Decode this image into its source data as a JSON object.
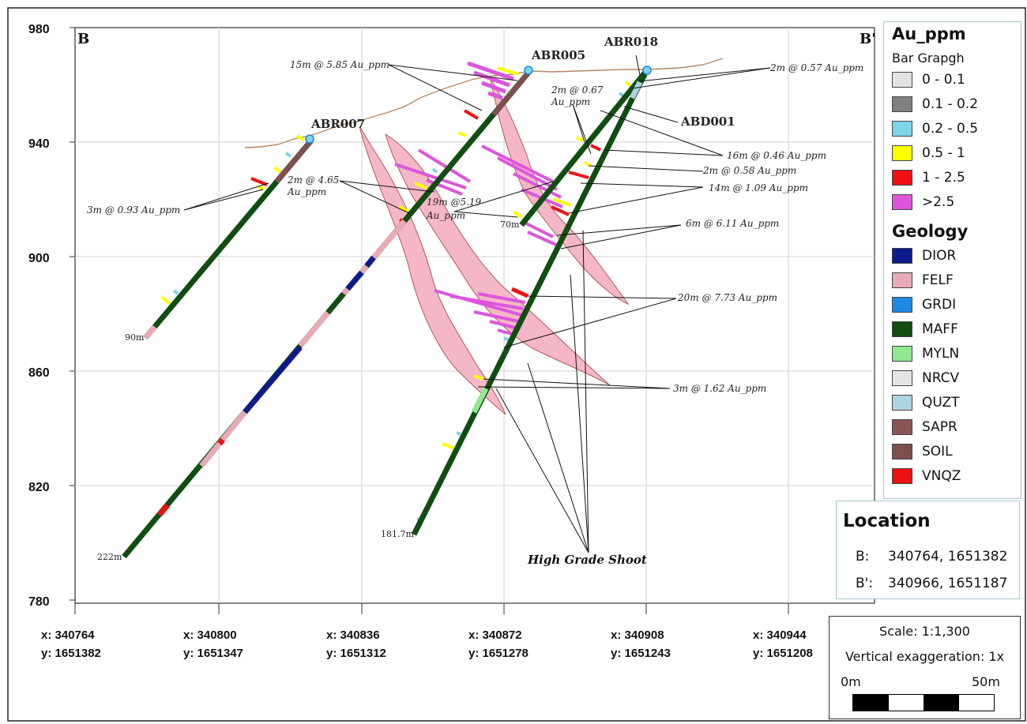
{
  "section": {
    "left_label": "B",
    "right_label": "B'",
    "y_ticks": [
      {
        "value": 980,
        "label": "980"
      },
      {
        "value": 940,
        "label": "940"
      },
      {
        "value": 900,
        "label": "900"
      },
      {
        "value": 860,
        "label": "860"
      },
      {
        "value": 820,
        "label": "820"
      },
      {
        "value": 780,
        "label": "780"
      }
    ],
    "x_ticks": [
      {
        "x": "x: 340764",
        "y": "y: 1651382"
      },
      {
        "x": "x: 340800",
        "y": "y: 1651347"
      },
      {
        "x": "x: 340836",
        "y": "y: 1651312"
      },
      {
        "x": "x: 340872",
        "y": "y: 1651278"
      },
      {
        "x": "x: 340908",
        "y": "y: 1651243"
      },
      {
        "x": "x: 340944",
        "y": "y: 1651208"
      }
    ]
  },
  "drillholes": {
    "abr007": {
      "name": "ABR007",
      "depth": "90m"
    },
    "abr005": {
      "name": "ABR005",
      "depth": "222m"
    },
    "abr018": {
      "name": "ABR018",
      "depth": "70m"
    },
    "abd001": {
      "name": "ABD001",
      "depth": "181.7m"
    }
  },
  "intercepts": {
    "i1": "15m @ 5.85 Au_ppm",
    "i2": "2m @ 0.57 Au_ppm",
    "i3a": "2m @ 0.67",
    "i3b": "Au_ppm",
    "i4": "16m @ 0.46 Au_ppm",
    "i5": "2m @ 0.58 Au_ppm",
    "i6": "14m @ 1.09 Au_ppm",
    "i7a": "2m @ 4.65",
    "i7b": "Au_ppm",
    "i8a": "19m @5.19",
    "i8b": "Au_ppm",
    "i9": "3m @ 0.93 Au_ppm",
    "i10": "6m @ 6.11 Au_ppm",
    "i11": "20m @ 7.73 Au_ppm",
    "i12": "3m @ 1.62 Au_ppm"
  },
  "annotation": "High Grade Shoot",
  "legend": {
    "au_title": "Au_ppm",
    "au_subtitle": "Bar Grapgh",
    "au_items": [
      {
        "label": "0 - 0.1",
        "color": "#e2e2e2"
      },
      {
        "label": "0.1 - 0.2",
        "color": "#808080"
      },
      {
        "label": "0.2 - 0.5",
        "color": "#7fd3e6"
      },
      {
        "label": "0.5 - 1",
        "color": "#ffff00"
      },
      {
        "label": "1 - 2.5",
        "color": "#ee1111"
      },
      {
        "label": ">2.5",
        "color": "#dd55dd"
      }
    ],
    "geo_title": "Geology",
    "geo_items": [
      {
        "label": "DIOR",
        "color": "#0d1a8a"
      },
      {
        "label": "FELF",
        "color": "#e8aab5"
      },
      {
        "label": "GRDI",
        "color": "#1e88e5"
      },
      {
        "label": "MAFF",
        "color": "#114d11"
      },
      {
        "label": "MYLN",
        "color": "#90e890"
      },
      {
        "label": "NRCV",
        "color": "#e4e4e4"
      },
      {
        "label": "QUZT",
        "color": "#acd4e2"
      },
      {
        "label": "SAPR",
        "color": "#8a5555"
      },
      {
        "label": "SOIL",
        "color": "#7d4f4f"
      },
      {
        "label": "VNQZ",
        "color": "#ee1111"
      }
    ]
  },
  "location": {
    "title": "Location",
    "b_label": "B:",
    "b_value": "340764, 1651382",
    "bp_label": "B':",
    "bp_value": "340966, 1651187"
  },
  "scale": {
    "scale_text": "Scale: 1:1,300",
    "vert_text": "Vertical exaggeration: 1x",
    "zero": "0m",
    "fifty": "50m"
  }
}
